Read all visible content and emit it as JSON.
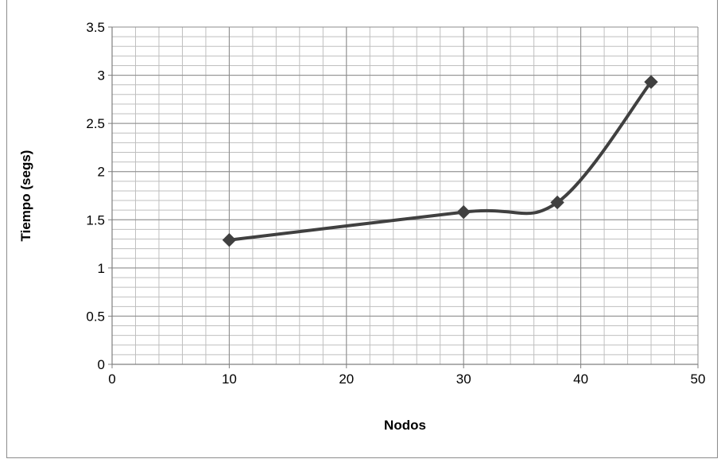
{
  "chart_data": {
    "type": "line",
    "title": "",
    "xlabel": "Nodos",
    "ylabel": "Tiempo (segs)",
    "xlim": [
      0,
      50
    ],
    "ylim": [
      0,
      3.5
    ],
    "x_ticks": [
      0,
      10,
      20,
      30,
      40,
      50
    ],
    "y_ticks": [
      0,
      0.5,
      1,
      1.5,
      2,
      2.5,
      3,
      3.5
    ],
    "x_tick_labels": [
      "0",
      "10",
      "20",
      "30",
      "40",
      "50"
    ],
    "y_tick_labels": [
      "0",
      "0.5",
      "1",
      "1.5",
      "2",
      "2.5",
      "3",
      "3.5"
    ],
    "grid": true,
    "legend": "none",
    "smooth": true,
    "marker": "diamond",
    "line_color": "#404040",
    "series": [
      {
        "x": [
          10,
          30,
          38,
          46
        ],
        "values": [
          1.29,
          1.58,
          1.68,
          2.93
        ]
      }
    ]
  }
}
